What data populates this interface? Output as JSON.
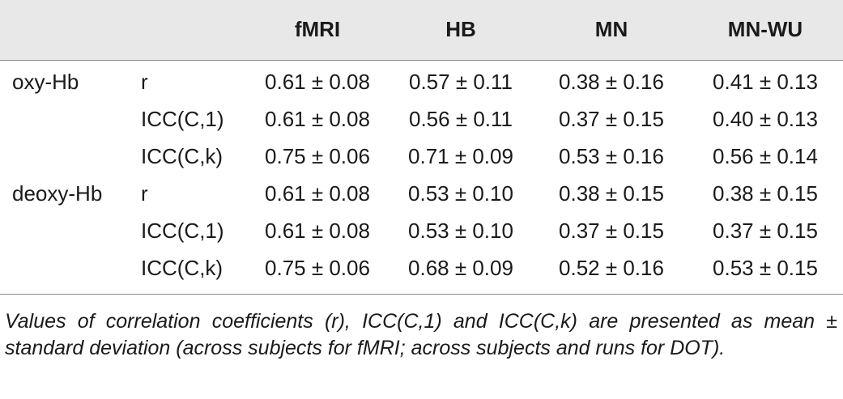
{
  "table": {
    "columns": [
      "",
      "",
      "fMRI",
      "HB",
      "MN",
      "MN-WU"
    ],
    "rows": [
      {
        "group": "oxy-Hb",
        "metric": "r",
        "values": [
          "0.61 ± 0.08",
          "0.57 ± 0.11",
          "0.38 ± 0.16",
          "0.41 ± 0.13"
        ]
      },
      {
        "group": "",
        "metric": "ICC(C,1)",
        "values": [
          "0.61 ± 0.08",
          "0.56 ± 0.11",
          "0.37 ± 0.15",
          "0.40 ± 0.13"
        ]
      },
      {
        "group": "",
        "metric": "ICC(C,k)",
        "values": [
          "0.75 ± 0.06",
          "0.71 ± 0.09",
          "0.53 ± 0.16",
          "0.56 ± 0.14"
        ]
      },
      {
        "group": "deoxy-Hb",
        "metric": "r",
        "values": [
          "0.61 ± 0.08",
          "0.53 ± 0.10",
          "0.38 ± 0.15",
          "0.38 ± 0.15"
        ]
      },
      {
        "group": "",
        "metric": "ICC(C,1)",
        "values": [
          "0.61 ± 0.08",
          "0.53 ± 0.10",
          "0.37 ± 0.15",
          "0.37 ± 0.15"
        ]
      },
      {
        "group": "",
        "metric": "ICC(C,k)",
        "values": [
          "0.75 ± 0.06",
          "0.68 ± 0.09",
          "0.52 ± 0.16",
          "0.53 ± 0.15"
        ]
      }
    ]
  },
  "footnote": "Values of correlation coefficients (r), ICC(C,1) and ICC(C,k) are presented as mean ± standard deviation (across subjects for fMRI; across subjects and runs for DOT).",
  "colors": {
    "header_background": "#e8e8e8",
    "rule": "#8a8a8a",
    "text": "#1a1a1a"
  }
}
